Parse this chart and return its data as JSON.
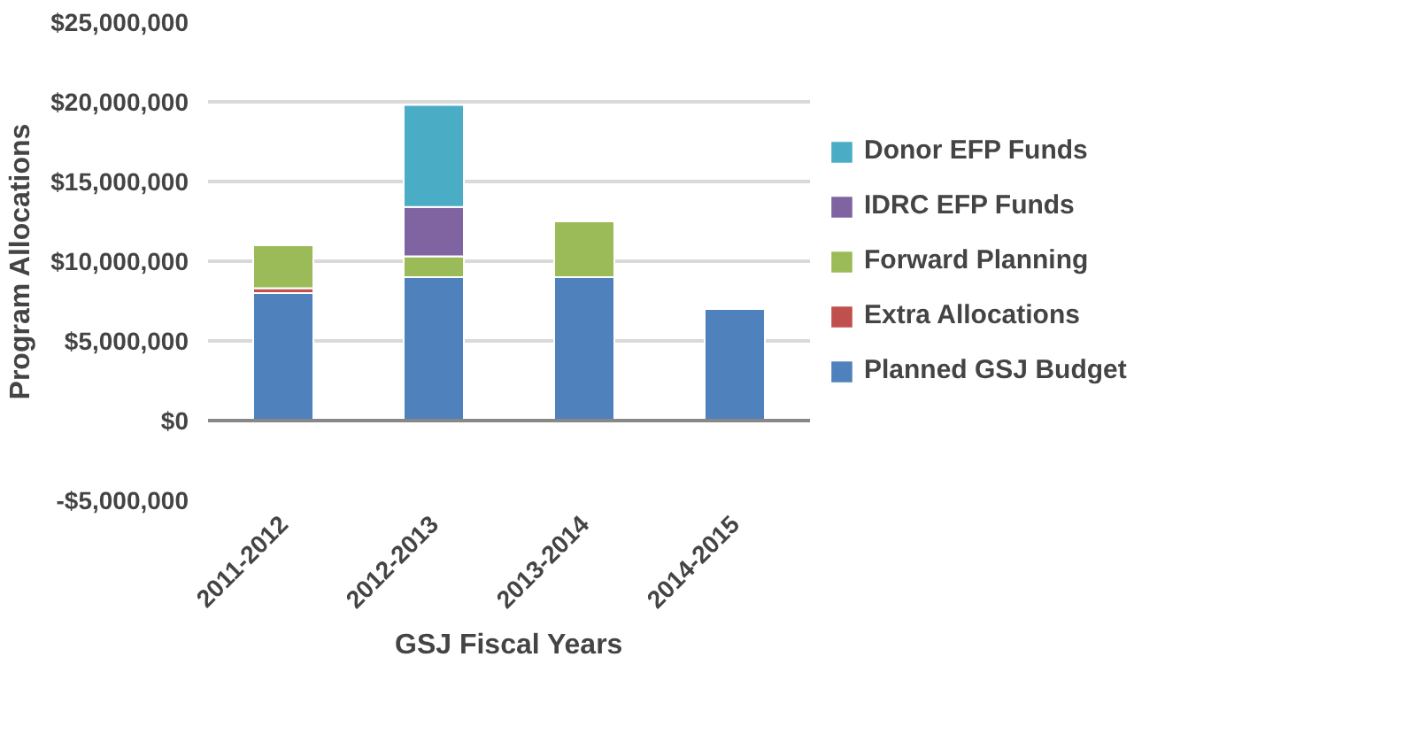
{
  "chart_data": {
    "type": "bar",
    "stacked": true,
    "xlabel": "GSJ Fiscal Years",
    "ylabel": "Program Allocations",
    "categories": [
      "2011-2012",
      "2012-2013",
      "2013-2014",
      "2014-2015"
    ],
    "series": [
      {
        "name": "Planned GSJ Budget",
        "color": "#4f81bd",
        "values": [
          8000000,
          9000000,
          9000000,
          7000000
        ]
      },
      {
        "name": "Extra Allocations",
        "color": "#c0504d",
        "values": [
          300000,
          0,
          0,
          0
        ]
      },
      {
        "name": "Forward Planning",
        "color": "#9bbb59",
        "values": [
          2700000,
          1300000,
          3500000,
          0
        ]
      },
      {
        "name": "IDRC EFP Funds",
        "color": "#8064a2",
        "values": [
          0,
          3100000,
          0,
          0
        ]
      },
      {
        "name": "Donor EFP Funds",
        "color": "#4bacc6",
        "values": [
          0,
          6400000,
          0,
          0
        ]
      }
    ],
    "ylim": [
      -5000000,
      25000000
    ],
    "yticks": [
      {
        "value": -5000000,
        "label": "-$5,000,000"
      },
      {
        "value": 0,
        "label": "$0"
      },
      {
        "value": 5000000,
        "label": "$5,000,000"
      },
      {
        "value": 10000000,
        "label": "$10,000,000"
      },
      {
        "value": 15000000,
        "label": "$15,000,000"
      },
      {
        "value": 20000000,
        "label": "$20,000,000"
      },
      {
        "value": 25000000,
        "label": "$25,000,000"
      }
    ],
    "grid": "y",
    "legend": "right"
  }
}
